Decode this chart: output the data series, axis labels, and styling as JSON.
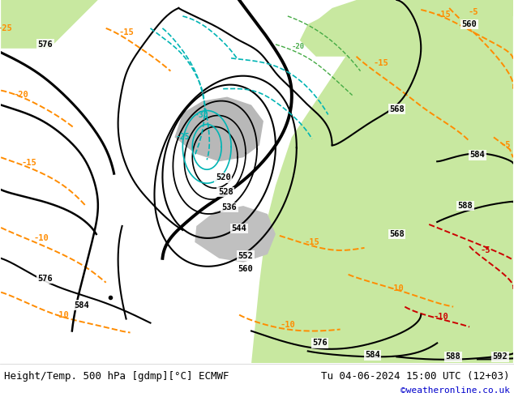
{
  "title_left": "Height/Temp. 500 hPa [gdmp][°C] ECMWF",
  "title_right": "Tu 04-06-2024 15:00 UTC (12+03)",
  "credit": "©weatheronline.co.uk",
  "fig_width": 6.34,
  "fig_height": 4.9,
  "dpi": 100,
  "bottom_bar_color": "#f2f2f2",
  "title_fontsize": 9.0,
  "credit_fontsize": 8.0,
  "credit_color": "#0000cc",
  "ocean_color": "#d2d2d2",
  "land_color_light": "#c8e8a0",
  "land_color_dark": "#b4d890",
  "orange": "#ff8c00",
  "red": "#cc0000",
  "cyan": "#00b4b4",
  "green_iso": "#00aa00"
}
